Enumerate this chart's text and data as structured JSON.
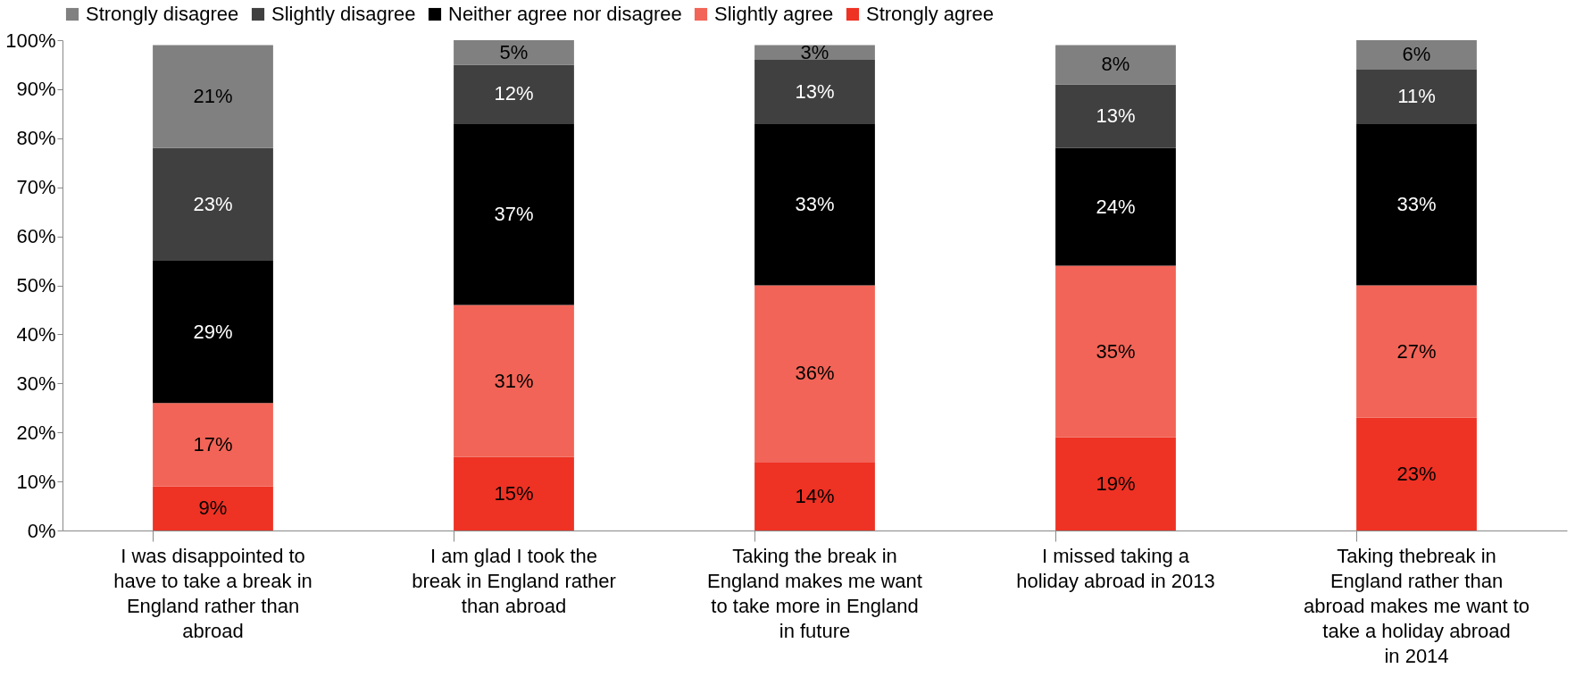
{
  "chart_data": {
    "type": "bar",
    "stacked": true,
    "legend": "top",
    "grid": false,
    "categories": [
      "I was disappointed to have to take a break in England rather than abroad",
      "I am glad I took the break in England rather than abroad",
      "Taking the break in England makes me want to take more in England in future",
      "I missed taking a holiday abroad in 2013",
      "Taking thebreak in England rather than abroad makes me want to take a holiday abroad in 2014"
    ],
    "ylim": [
      0,
      100
    ],
    "yticks": [
      {
        "value": 0,
        "label": "0%"
      },
      {
        "value": 10,
        "label": "10%"
      },
      {
        "value": 20,
        "label": "20%"
      },
      {
        "value": 30,
        "label": "30%"
      },
      {
        "value": 40,
        "label": "40%"
      },
      {
        "value": 50,
        "label": "50%"
      },
      {
        "value": 60,
        "label": "60%"
      },
      {
        "value": 70,
        "label": "70%"
      },
      {
        "value": 80,
        "label": "80%"
      },
      {
        "value": 90,
        "label": "90%"
      },
      {
        "value": 100,
        "label": "100%"
      }
    ],
    "series": [
      {
        "name": "Strongly agree",
        "color": "#ee3224",
        "values": [
          9,
          15,
          14,
          19,
          23
        ],
        "value_labels": [
          "9%",
          "15%",
          "14%",
          "19%",
          "23%"
        ]
      },
      {
        "name": "Slightly agree",
        "color": "#f26457",
        "values": [
          17,
          31,
          36,
          35,
          27
        ],
        "value_labels": [
          "17%",
          "31%",
          "36%",
          "35%",
          "27%"
        ]
      },
      {
        "name": "Neither agree nor disagree",
        "color": "#000000",
        "values": [
          29,
          37,
          33,
          24,
          33
        ],
        "value_labels": [
          "29%",
          "37%",
          "33%",
          "24%",
          "33%"
        ]
      },
      {
        "name": "Slightly disagree",
        "color": "#404040",
        "values": [
          23,
          12,
          13,
          13,
          11
        ],
        "value_labels": [
          "23%",
          "12%",
          "13%",
          "13%",
          "11%"
        ]
      },
      {
        "name": "Strongly disagree",
        "color": "#808080",
        "values": [
          21,
          5,
          3,
          8,
          6
        ],
        "value_labels": [
          "21%",
          "5%",
          "3%",
          "8%",
          "6%"
        ]
      }
    ]
  }
}
